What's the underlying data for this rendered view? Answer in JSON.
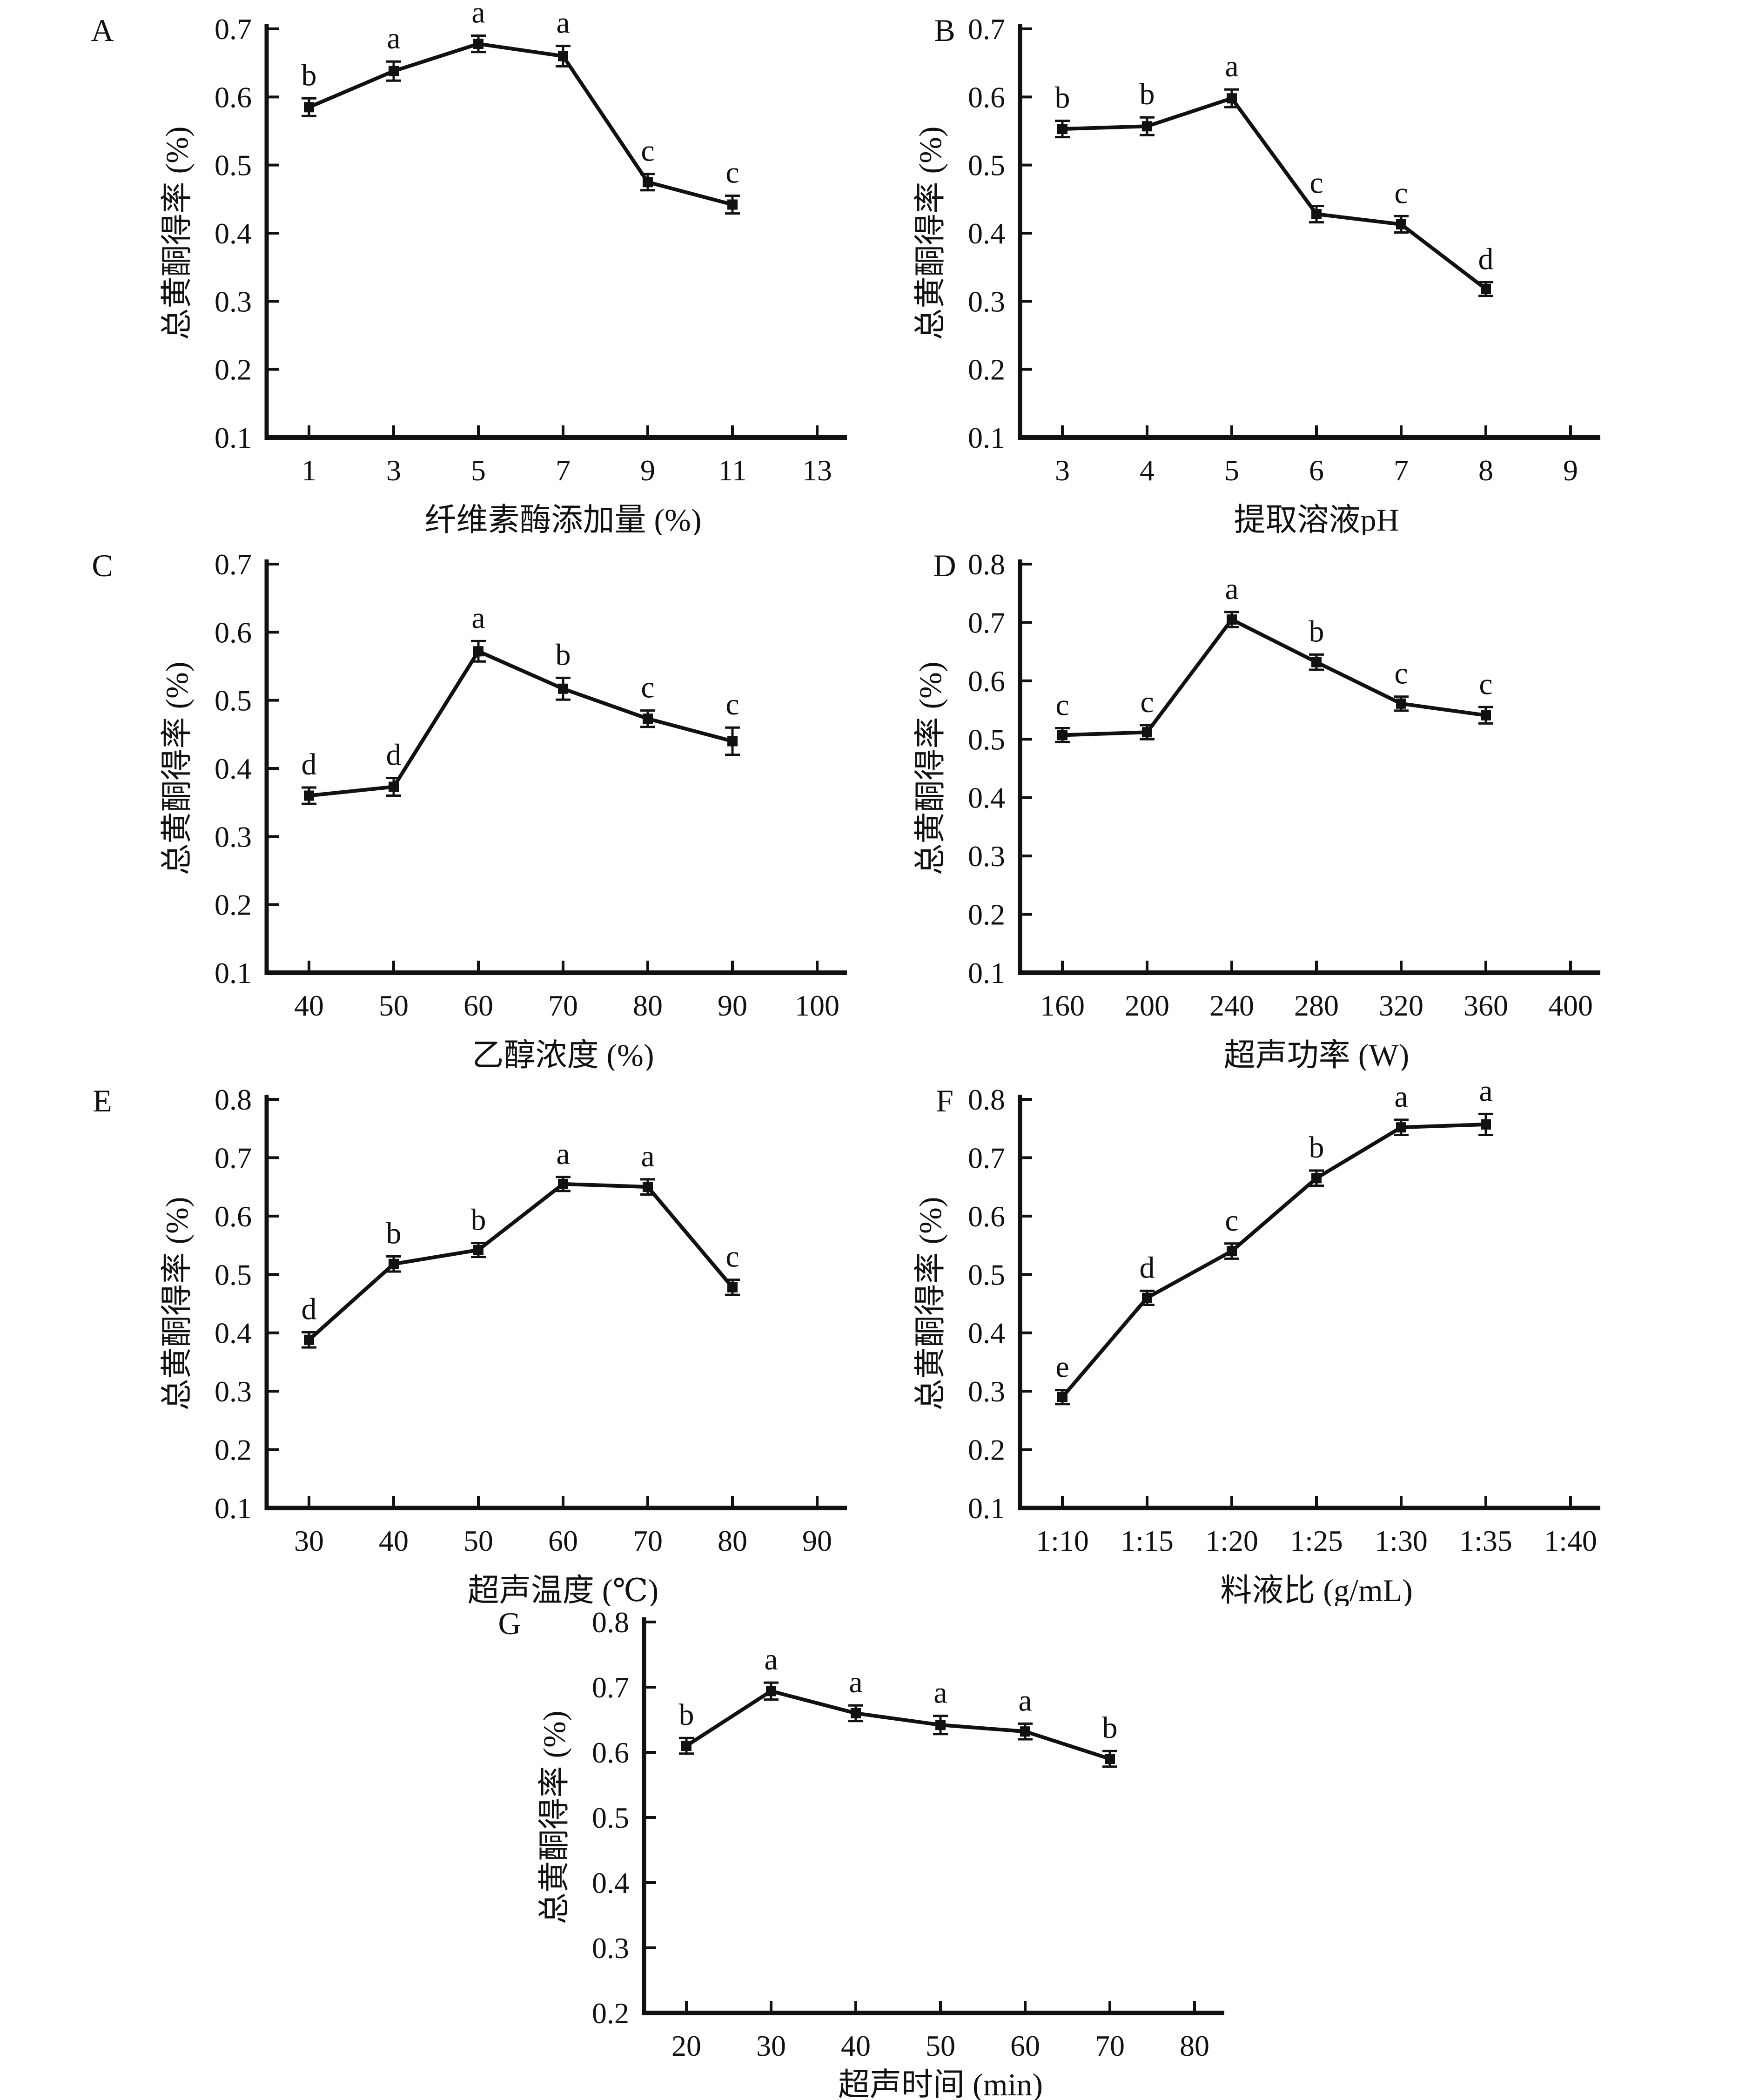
{
  "figure": {
    "shared_y_axis_label": "总黄酮得率 (%)",
    "marker_color": "#111111",
    "background_color": "#ffffff"
  },
  "chart_data": [
    {
      "panel_label": "A",
      "type": "line",
      "title": "",
      "xlabel": "纤维素酶添加量 (%)",
      "ylabel": "总黄酮得率 (%)",
      "x_tick_labels": [
        "1",
        "3",
        "5",
        "7",
        "9",
        "11",
        "13"
      ],
      "y_tick_labels": [
        "0.1",
        "0.2",
        "0.3",
        "0.4",
        "0.5",
        "0.6",
        "0.7"
      ],
      "ylim": [
        0.1,
        0.7
      ],
      "grid": "off",
      "categories": [
        "1",
        "3",
        "5",
        "7",
        "9",
        "11"
      ],
      "values": [
        0.585,
        0.638,
        0.678,
        0.66,
        0.475,
        0.442
      ],
      "errors": [
        0.013,
        0.014,
        0.012,
        0.015,
        0.012,
        0.013
      ],
      "sig_letters": [
        "b",
        "a",
        "a",
        "a",
        "c",
        "c"
      ]
    },
    {
      "panel_label": "B",
      "type": "line",
      "title": "",
      "xlabel": "提取溶液pH",
      "ylabel": "总黄酮得率 (%)",
      "x_tick_labels": [
        "3",
        "4",
        "5",
        "6",
        "7",
        "8",
        "9"
      ],
      "y_tick_labels": [
        "0.1",
        "0.2",
        "0.3",
        "0.4",
        "0.5",
        "0.6",
        "0.7"
      ],
      "ylim": [
        0.1,
        0.7
      ],
      "grid": "off",
      "categories": [
        "3",
        "4",
        "5",
        "6",
        "7",
        "8"
      ],
      "values": [
        0.553,
        0.557,
        0.598,
        0.428,
        0.413,
        0.318
      ],
      "errors": [
        0.012,
        0.013,
        0.013,
        0.012,
        0.012,
        0.01
      ],
      "sig_letters": [
        "b",
        "b",
        "a",
        "c",
        "c",
        "d"
      ]
    },
    {
      "panel_label": "C",
      "type": "line",
      "title": "",
      "xlabel": "乙醇浓度 (%)",
      "ylabel": "总黄酮得率 (%)",
      "x_tick_labels": [
        "40",
        "50",
        "60",
        "70",
        "80",
        "90",
        "100"
      ],
      "y_tick_labels": [
        "0.1",
        "0.2",
        "0.3",
        "0.4",
        "0.5",
        "0.6",
        "0.7"
      ],
      "ylim": [
        0.1,
        0.7
      ],
      "grid": "off",
      "categories": [
        "40",
        "50",
        "60",
        "70",
        "80",
        "90"
      ],
      "values": [
        0.36,
        0.373,
        0.572,
        0.517,
        0.473,
        0.44
      ],
      "errors": [
        0.012,
        0.013,
        0.015,
        0.016,
        0.012,
        0.02
      ],
      "sig_letters": [
        "d",
        "d",
        "a",
        "b",
        "c",
        "c"
      ]
    },
    {
      "panel_label": "D",
      "type": "line",
      "title": "",
      "xlabel": "超声功率 (W)",
      "ylabel": "总黄酮得率 (%)",
      "x_tick_labels": [
        "160",
        "200",
        "240",
        "280",
        "320",
        "360",
        "400"
      ],
      "y_tick_labels": [
        "0.1",
        "0.2",
        "0.3",
        "0.4",
        "0.5",
        "0.6",
        "0.7",
        "0.8"
      ],
      "ylim": [
        0.1,
        0.8
      ],
      "grid": "off",
      "categories": [
        "160",
        "200",
        "240",
        "280",
        "320",
        "360"
      ],
      "values": [
        0.507,
        0.512,
        0.705,
        0.632,
        0.561,
        0.541
      ],
      "errors": [
        0.012,
        0.012,
        0.013,
        0.013,
        0.012,
        0.014
      ],
      "sig_letters": [
        "c",
        "c",
        "a",
        "b",
        "c",
        "c"
      ]
    },
    {
      "panel_label": "E",
      "type": "line",
      "title": "",
      "xlabel": "超声温度 (℃)",
      "ylabel": "总黄酮得率 (%)",
      "x_tick_labels": [
        "30",
        "40",
        "50",
        "60",
        "70",
        "80",
        "90"
      ],
      "y_tick_labels": [
        "0.1",
        "0.2",
        "0.3",
        "0.4",
        "0.5",
        "0.6",
        "0.7",
        "0.8"
      ],
      "ylim": [
        0.1,
        0.8
      ],
      "grid": "off",
      "categories": [
        "30",
        "40",
        "50",
        "60",
        "70",
        "80"
      ],
      "values": [
        0.388,
        0.518,
        0.542,
        0.655,
        0.65,
        0.478
      ],
      "errors": [
        0.013,
        0.013,
        0.012,
        0.012,
        0.013,
        0.013
      ],
      "sig_letters": [
        "d",
        "b",
        "b",
        "a",
        "a",
        "c"
      ]
    },
    {
      "panel_label": "F",
      "type": "line",
      "title": "",
      "xlabel": "料液比 (g/mL)",
      "ylabel": "总黄酮得率 (%)",
      "x_tick_labels": [
        "1:10",
        "1:15",
        "1:20",
        "1:25",
        "1:30",
        "1:35",
        "1:40"
      ],
      "y_tick_labels": [
        "0.1",
        "0.2",
        "0.3",
        "0.4",
        "0.5",
        "0.6",
        "0.7",
        "0.8"
      ],
      "ylim": [
        0.1,
        0.8
      ],
      "grid": "off",
      "categories": [
        "1:10",
        "1:15",
        "1:20",
        "1:25",
        "1:30",
        "1:35"
      ],
      "values": [
        0.29,
        0.46,
        0.54,
        0.665,
        0.752,
        0.757
      ],
      "errors": [
        0.012,
        0.012,
        0.013,
        0.013,
        0.013,
        0.018
      ],
      "sig_letters": [
        "e",
        "d",
        "c",
        "b",
        "a",
        "a"
      ]
    },
    {
      "panel_label": "G",
      "type": "line",
      "title": "",
      "xlabel": "超声时间 (min)",
      "ylabel": "总黄酮得率 (%)",
      "x_tick_labels": [
        "20",
        "30",
        "40",
        "50",
        "60",
        "70",
        "80"
      ],
      "y_tick_labels": [
        "0.2",
        "0.3",
        "0.4",
        "0.5",
        "0.6",
        "0.7",
        "0.8"
      ],
      "ylim": [
        0.2,
        0.8
      ],
      "grid": "off",
      "categories": [
        "20",
        "30",
        "40",
        "50",
        "60",
        "70"
      ],
      "values": [
        0.61,
        0.694,
        0.66,
        0.642,
        0.632,
        0.59
      ],
      "errors": [
        0.012,
        0.013,
        0.012,
        0.014,
        0.012,
        0.012
      ],
      "sig_letters": [
        "b",
        "a",
        "a",
        "a",
        "a",
        "b"
      ]
    }
  ]
}
